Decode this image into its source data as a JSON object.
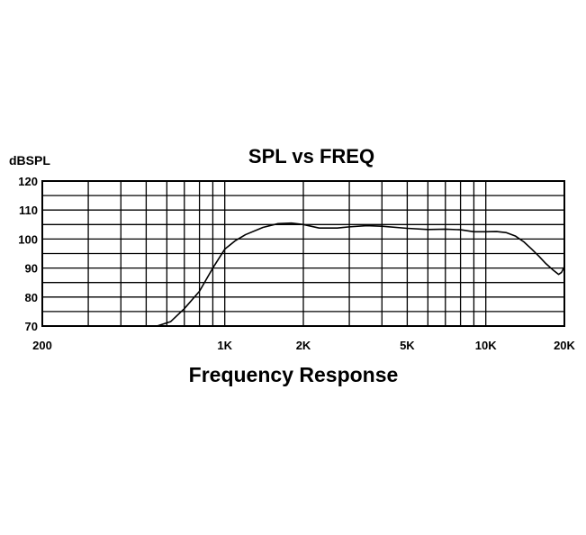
{
  "chart_data": {
    "type": "line",
    "title": "SPL vs FREQ",
    "xlabel": "Frequency Response",
    "ylabel": "dBSPL",
    "x_scale": "log",
    "xlim": [
      200,
      20000
    ],
    "ylim": [
      70,
      120
    ],
    "grid": true,
    "x_tick_labels": [
      {
        "value": 200,
        "label": "200"
      },
      {
        "value": 1000,
        "label": "1K"
      },
      {
        "value": 2000,
        "label": "2K"
      },
      {
        "value": 5000,
        "label": "5K"
      },
      {
        "value": 10000,
        "label": "10K"
      },
      {
        "value": 20000,
        "label": "20K"
      }
    ],
    "y_ticks": [
      70,
      80,
      90,
      100,
      110,
      120
    ],
    "series": [
      {
        "color": "#000000",
        "x": [
          550,
          620,
          700,
          800,
          900,
          1000,
          1100,
          1200,
          1400,
          1600,
          1800,
          2000,
          2300,
          2700,
          3000,
          3500,
          4000,
          5000,
          6000,
          7000,
          8000,
          9000,
          10000,
          11000,
          12000,
          13000,
          14000,
          15000,
          16000,
          17000,
          18000,
          19000,
          19500,
          20000
        ],
        "y": [
          70,
          71.5,
          76,
          82,
          90,
          96.5,
          99.5,
          101.5,
          104,
          105.3,
          105.5,
          105,
          103.8,
          103.8,
          104.2,
          104.6,
          104.4,
          103.7,
          103.3,
          103.4,
          103.2,
          102.5,
          102.5,
          102.6,
          102.2,
          101,
          99,
          96.5,
          94,
          91.5,
          89.5,
          87.8,
          88.5,
          90.5
        ]
      }
    ]
  }
}
